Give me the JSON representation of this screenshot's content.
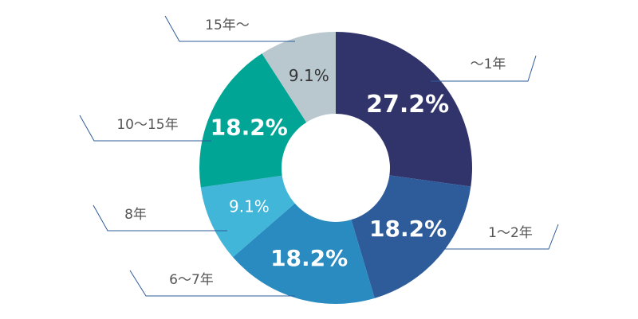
{
  "chart_data": {
    "type": "pie",
    "categories": [
      "～1年",
      "1～2年",
      "6～7年",
      "8年",
      "10～15年",
      "15年～"
    ],
    "values": [
      27.2,
      18.2,
      18.2,
      9.1,
      18.2,
      9.1
    ],
    "value_labels": [
      "27.2%",
      "18.2%",
      "18.2%",
      "9.1%",
      "18.2%",
      "9.1%"
    ],
    "colors": [
      "#30346b",
      "#2e5c9a",
      "#2a8bc0",
      "#42b6d9",
      "#00a596",
      "#b9c7cf"
    ]
  }
}
